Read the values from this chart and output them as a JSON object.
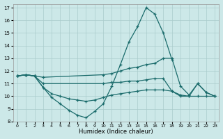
{
  "xlabel": "Humidex (Indice chaleur)",
  "background_color": "#cce8e8",
  "grid_color": "#aacccc",
  "line_color": "#1a6b6b",
  "xlim": [
    -0.5,
    23.5
  ],
  "ylim": [
    8,
    17.3
  ],
  "yticks": [
    8,
    9,
    10,
    11,
    12,
    13,
    14,
    15,
    16,
    17
  ],
  "xticks": [
    0,
    1,
    2,
    3,
    4,
    5,
    6,
    7,
    8,
    9,
    10,
    11,
    12,
    13,
    14,
    15,
    16,
    17,
    18,
    19,
    20,
    21,
    22,
    23
  ],
  "line1_x": [
    0,
    1,
    2,
    3,
    4,
    5,
    6,
    7,
    8,
    9,
    10,
    11,
    12,
    13,
    14,
    15,
    16,
    17,
    18
  ],
  "line1_y": [
    11.6,
    11.7,
    11.6,
    10.7,
    9.9,
    9.4,
    8.9,
    8.5,
    8.3,
    8.8,
    9.4,
    10.8,
    12.5,
    14.3,
    15.5,
    17.0,
    16.5,
    15.0,
    12.9
  ],
  "line2_x": [
    0,
    1,
    2,
    3,
    10,
    11,
    12,
    13,
    14,
    15,
    16,
    17,
    18,
    19,
    20,
    21,
    22,
    23
  ],
  "line2_y": [
    11.6,
    11.7,
    11.6,
    11.5,
    11.7,
    11.8,
    12.0,
    12.2,
    12.3,
    12.5,
    12.6,
    13.0,
    13.0,
    10.8,
    10.1,
    11.0,
    10.3,
    10.0
  ],
  "line3_x": [
    0,
    1,
    2,
    3,
    10,
    11,
    12,
    13,
    14,
    15,
    16,
    17,
    18,
    19,
    20,
    21,
    22,
    23
  ],
  "line3_y": [
    11.6,
    11.7,
    11.6,
    11.0,
    11.0,
    11.1,
    11.1,
    11.2,
    11.2,
    11.3,
    11.4,
    11.4,
    10.4,
    10.0,
    10.0,
    11.0,
    10.3,
    10.0
  ],
  "line4_x": [
    0,
    1,
    2,
    3,
    4,
    5,
    6,
    7,
    8,
    9,
    10,
    11,
    12,
    13,
    14,
    15,
    16,
    17,
    18,
    19,
    20,
    21,
    22,
    23
  ],
  "line4_y": [
    11.6,
    11.7,
    11.6,
    10.7,
    10.2,
    10.0,
    9.8,
    9.7,
    9.6,
    9.7,
    9.9,
    10.1,
    10.2,
    10.3,
    10.4,
    10.5,
    10.5,
    10.5,
    10.4,
    10.1,
    10.0,
    10.0,
    10.0,
    10.0
  ]
}
